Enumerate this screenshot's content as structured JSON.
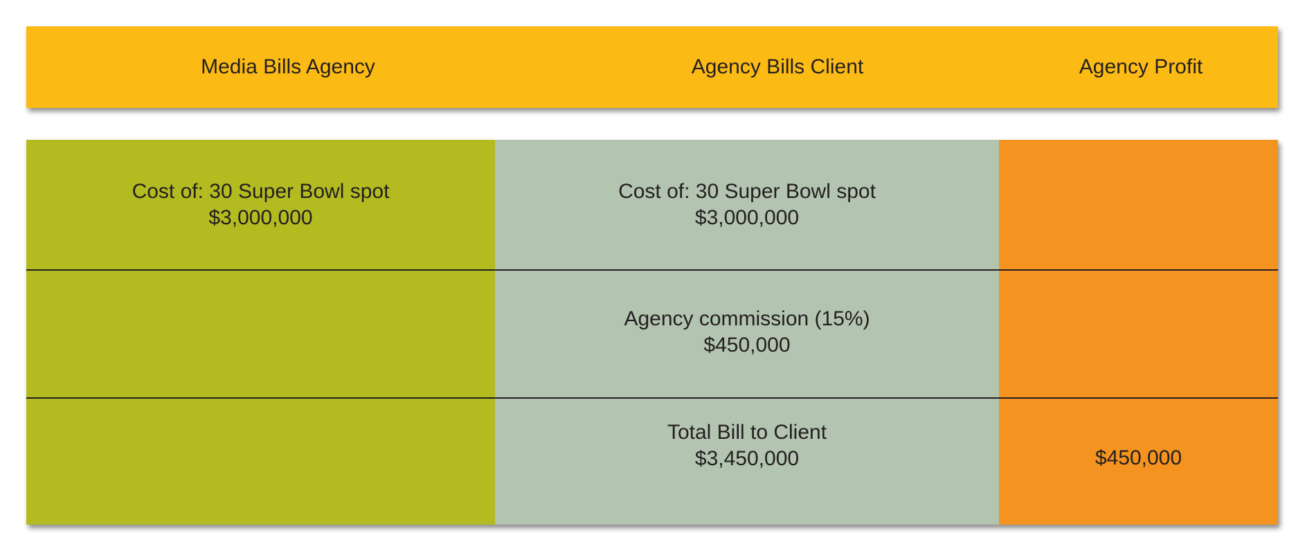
{
  "header": {
    "media_bills_agency": "Media Bills Agency",
    "agency_bills_client": "Agency Bills Client",
    "agency_profit": "Agency Profit"
  },
  "rows": [
    {
      "media": {
        "label": "Cost of: 30 Super Bowl spot",
        "amount": "$3,000,000"
      },
      "client": {
        "label": "Cost of: 30 Super Bowl spot",
        "amount": "$3,000,000"
      },
      "profit": {
        "amount": ""
      }
    },
    {
      "media": {
        "label": "",
        "amount": ""
      },
      "client": {
        "label": "Agency commission (15%)",
        "amount": "$450,000"
      },
      "profit": {
        "amount": ""
      }
    },
    {
      "media": {
        "label": "",
        "amount": ""
      },
      "client": {
        "label": "Total Bill to Client",
        "amount": "$3,450,000"
      },
      "profit": {
        "amount": "$450,000"
      }
    }
  ],
  "colors": {
    "header": "#fcbb14",
    "media_column": "#b3bb21",
    "client_column": "#b3c4b0",
    "profit_column": "#f4931f",
    "divider": "#231f20"
  }
}
